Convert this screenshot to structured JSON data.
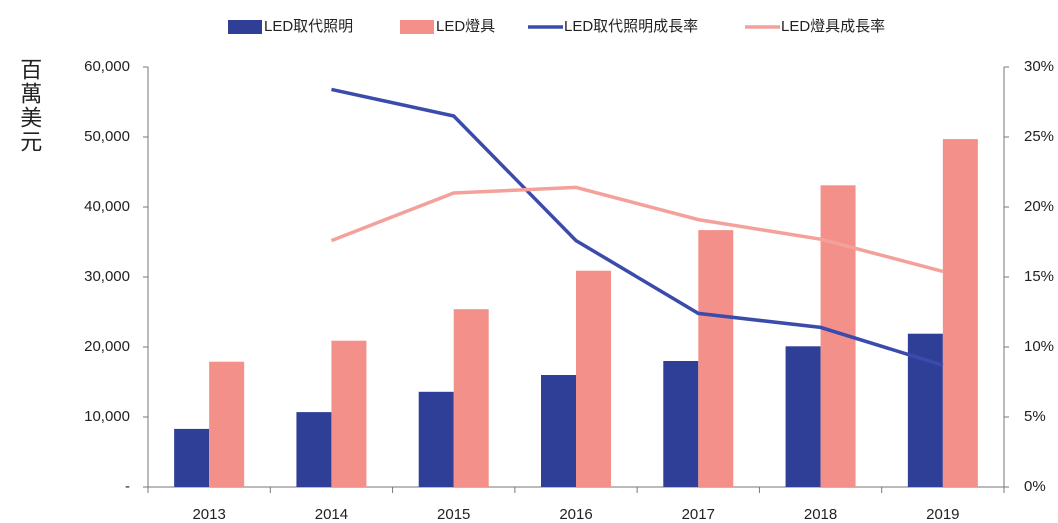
{
  "chart_data": {
    "type": "bar",
    "ylabel": "百萬美元",
    "categories": [
      "2013",
      "2014",
      "2015",
      "2016",
      "2017",
      "2018",
      "2019"
    ],
    "series": [
      {
        "name": "LED取代照明",
        "type": "bar",
        "color": "#2f3f98",
        "values": [
          8300,
          10700,
          13600,
          16000,
          18000,
          20100,
          21900
        ]
      },
      {
        "name": "LED燈具",
        "type": "bar",
        "color": "#f4908a",
        "values": [
          17900,
          20900,
          25400,
          30900,
          36700,
          43100,
          49700
        ]
      },
      {
        "name": "LED取代照明成長率",
        "type": "line",
        "axis": "y2",
        "color": "#3b4bab",
        "values": [
          null,
          28.4,
          26.5,
          17.6,
          12.4,
          11.4,
          8.7
        ]
      },
      {
        "name": "LED燈具成長率",
        "type": "line",
        "axis": "y2",
        "color": "#f4a19b",
        "values": [
          null,
          17.6,
          21.0,
          21.4,
          19.1,
          17.7,
          15.4
        ]
      }
    ],
    "ylim": [
      0,
      60000
    ],
    "yticks": [
      {
        "value": 0,
        "label": "-"
      },
      {
        "value": 10000,
        "label": "10,000"
      },
      {
        "value": 20000,
        "label": "20,000"
      },
      {
        "value": 30000,
        "label": "30,000"
      },
      {
        "value": 40000,
        "label": "40,000"
      },
      {
        "value": 50000,
        "label": "50,000"
      },
      {
        "value": 60000,
        "label": "60,000"
      }
    ],
    "y2lim": [
      0,
      30
    ],
    "y2ticks": [
      {
        "value": 0,
        "label": "0%"
      },
      {
        "value": 5,
        "label": "5%"
      },
      {
        "value": 10,
        "label": "10%"
      },
      {
        "value": 15,
        "label": "15%"
      },
      {
        "value": 20,
        "label": "20%"
      },
      {
        "value": 25,
        "label": "25%"
      },
      {
        "value": 30,
        "label": "30%"
      }
    ],
    "grid": false,
    "legend": "top"
  }
}
